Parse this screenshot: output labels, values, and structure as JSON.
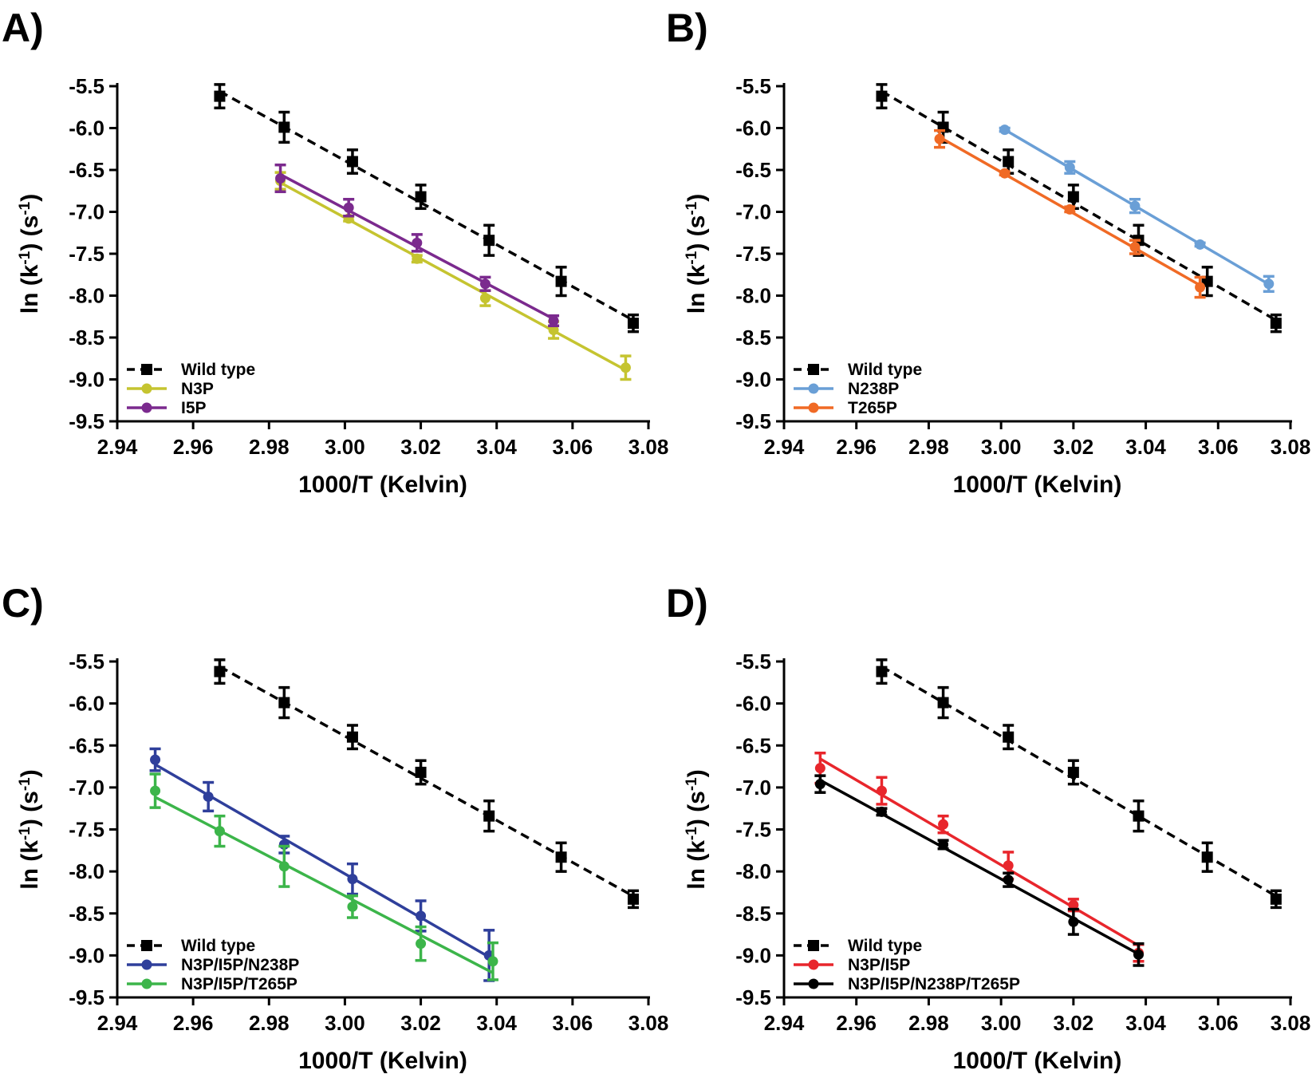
{
  "chart_data": [
    {
      "panel_label": "A)",
      "type": "line",
      "xlabel": "1000/T (Kelvin)",
      "ylabel": [
        "ln (k",
        "-1",
        ") (s",
        "-1",
        ")"
      ],
      "xlim": [
        2.94,
        3.08
      ],
      "ylim": [
        -9.5,
        -5.5
      ],
      "xticks": [
        "2.94",
        "2.96",
        "2.98",
        "3.00",
        "3.02",
        "3.04",
        "3.06",
        "3.08"
      ],
      "yticks": [
        "-5.5",
        "-6.0",
        "-6.5",
        "-7.0",
        "-7.5",
        "-8.0",
        "-8.5",
        "-9.0",
        "-9.5"
      ],
      "legend_position": "bottom-left",
      "series": [
        {
          "name": "Wild type",
          "color": "#000000",
          "marker": "square",
          "dashed": true,
          "x": [
            2.967,
            2.984,
            3.002,
            3.02,
            3.038,
            3.057,
            3.076
          ],
          "y": [
            -5.62,
            -5.99,
            -6.4,
            -6.82,
            -7.34,
            -7.83,
            -8.33
          ],
          "err": [
            0.14,
            0.18,
            0.14,
            0.14,
            0.18,
            0.17,
            0.1
          ]
        },
        {
          "name": "N3P",
          "color": "#c5c430",
          "marker": "circle",
          "dashed": false,
          "x": [
            2.983,
            3.001,
            3.019,
            3.037,
            3.055,
            3.074
          ],
          "y": [
            -6.63,
            -7.08,
            -7.56,
            -8.03,
            -8.41,
            -8.86
          ],
          "err": [
            0.1,
            0.03,
            0.04,
            0.09,
            0.1,
            0.14
          ]
        },
        {
          "name": "I5P",
          "color": "#7b2a8e",
          "marker": "circle",
          "dashed": false,
          "x": [
            2.983,
            3.001,
            3.019,
            3.037,
            3.055
          ],
          "y": [
            -6.6,
            -6.95,
            -7.37,
            -7.86,
            -8.3
          ],
          "err": [
            0.16,
            0.1,
            0.1,
            0.08,
            0.06
          ]
        }
      ]
    },
    {
      "panel_label": "B)",
      "type": "line",
      "xlabel": "1000/T (Kelvin)",
      "ylabel": [
        "ln (k",
        "-1",
        ") (s",
        "-1",
        ")"
      ],
      "xlim": [
        2.94,
        3.08
      ],
      "ylim": [
        -9.5,
        -5.5
      ],
      "xticks": [
        "2.94",
        "2.96",
        "2.98",
        "3.00",
        "3.02",
        "3.04",
        "3.06",
        "3.08"
      ],
      "yticks": [
        "-5.5",
        "-6.0",
        "-6.5",
        "-7.0",
        "-7.5",
        "-8.0",
        "-8.5",
        "-9.0",
        "-9.5"
      ],
      "legend_position": "bottom-left",
      "series": [
        {
          "name": "Wild type",
          "color": "#000000",
          "marker": "square",
          "dashed": true,
          "x": [
            2.967,
            2.984,
            3.002,
            3.02,
            3.038,
            3.057,
            3.076
          ],
          "y": [
            -5.62,
            -5.99,
            -6.4,
            -6.82,
            -7.34,
            -7.83,
            -8.33
          ],
          "err": [
            0.14,
            0.18,
            0.14,
            0.14,
            0.18,
            0.17,
            0.1
          ]
        },
        {
          "name": "N238P",
          "color": "#6a9fd6",
          "marker": "circle",
          "dashed": false,
          "x": [
            3.001,
            3.019,
            3.037,
            3.055,
            3.074
          ],
          "y": [
            -6.02,
            -6.47,
            -6.93,
            -7.39,
            -7.86
          ],
          "err": [
            0.02,
            0.07,
            0.08,
            0.02,
            0.09
          ]
        },
        {
          "name": "T265P",
          "color": "#f06a25",
          "marker": "circle",
          "dashed": false,
          "x": [
            2.983,
            3.001,
            3.019,
            3.037,
            3.055
          ],
          "y": [
            -6.13,
            -6.54,
            -6.97,
            -7.42,
            -7.9
          ],
          "err": [
            0.1,
            0.02,
            0.03,
            0.08,
            0.12
          ]
        }
      ]
    },
    {
      "panel_label": "C)",
      "type": "line",
      "xlabel": "1000/T (Kelvin)",
      "ylabel": [
        "ln (k",
        "-1",
        ") (s",
        "-1",
        ")"
      ],
      "xlim": [
        2.94,
        3.08
      ],
      "ylim": [
        -9.5,
        -5.5
      ],
      "xticks": [
        "2.94",
        "2.96",
        "2.98",
        "3.00",
        "3.02",
        "3.04",
        "3.06",
        "3.08"
      ],
      "yticks": [
        "-5.5",
        "-6.0",
        "-6.5",
        "-7.0",
        "-7.5",
        "-8.0",
        "-8.5",
        "-9.0",
        "-9.5"
      ],
      "legend_position": "bottom-left",
      "series": [
        {
          "name": "Wild type",
          "color": "#000000",
          "marker": "square",
          "dashed": true,
          "x": [
            2.967,
            2.984,
            3.002,
            3.02,
            3.038,
            3.057,
            3.076
          ],
          "y": [
            -5.62,
            -5.99,
            -6.4,
            -6.82,
            -7.34,
            -7.83,
            -8.33
          ],
          "err": [
            0.14,
            0.18,
            0.14,
            0.14,
            0.18,
            0.17,
            0.1
          ]
        },
        {
          "name": "N3P/I5P/N238P",
          "color": "#2f3f9b",
          "marker": "circle",
          "dashed": false,
          "x": [
            2.95,
            2.964,
            2.984,
            3.002,
            3.02,
            3.038
          ],
          "y": [
            -6.67,
            -7.11,
            -7.68,
            -8.09,
            -8.53,
            -9.0
          ],
          "err": [
            0.13,
            0.17,
            0.1,
            0.18,
            0.18,
            0.3
          ]
        },
        {
          "name": "N3P/I5P/T265P",
          "color": "#3cb54a",
          "marker": "circle",
          "dashed": false,
          "x": [
            2.95,
            2.967,
            2.984,
            3.002,
            3.02,
            3.039
          ],
          "y": [
            -7.04,
            -7.52,
            -7.94,
            -8.42,
            -8.86,
            -9.07
          ],
          "err": [
            0.2,
            0.18,
            0.24,
            0.13,
            0.2,
            0.22
          ]
        }
      ]
    },
    {
      "panel_label": "D)",
      "type": "line",
      "xlabel": "1000/T (Kelvin)",
      "ylabel": [
        "ln (k",
        "-1",
        ") (s",
        "-1",
        ")"
      ],
      "xlim": [
        2.94,
        3.08
      ],
      "ylim": [
        -9.5,
        -5.5
      ],
      "xticks": [
        "2.94",
        "2.96",
        "2.98",
        "3.00",
        "3.02",
        "3.04",
        "3.06",
        "3.08"
      ],
      "yticks": [
        "-5.5",
        "-6.0",
        "-6.5",
        "-7.0",
        "-7.5",
        "-8.0",
        "-8.5",
        "-9.0",
        "-9.5"
      ],
      "legend_position": "bottom-left",
      "series": [
        {
          "name": "Wild type",
          "color": "#000000",
          "marker": "square",
          "dashed": true,
          "x": [
            2.967,
            2.984,
            3.002,
            3.02,
            3.038,
            3.057,
            3.076
          ],
          "y": [
            -5.62,
            -5.99,
            -6.4,
            -6.82,
            -7.34,
            -7.83,
            -8.33
          ],
          "err": [
            0.14,
            0.18,
            0.14,
            0.14,
            0.18,
            0.17,
            0.1
          ]
        },
        {
          "name": "N3P/I5P",
          "color": "#e8262c",
          "marker": "circle",
          "dashed": false,
          "x": [
            2.95,
            2.967,
            2.984,
            3.002,
            3.02,
            3.038
          ],
          "y": [
            -6.77,
            -7.04,
            -7.44,
            -7.93,
            -8.4,
            -8.97
          ],
          "err": [
            0.18,
            0.16,
            0.1,
            0.16,
            0.07,
            0.1
          ]
        },
        {
          "name": "N3P/I5P/N238P/T265P",
          "color": "#000000",
          "marker": "circle",
          "dashed": false,
          "x": [
            2.95,
            2.967,
            2.984,
            3.002,
            3.02,
            3.038
          ],
          "y": [
            -6.96,
            -7.29,
            -7.68,
            -8.1,
            -8.6,
            -8.99
          ],
          "err": [
            0.1,
            0.04,
            0.05,
            0.08,
            0.15,
            0.13
          ]
        }
      ]
    }
  ]
}
